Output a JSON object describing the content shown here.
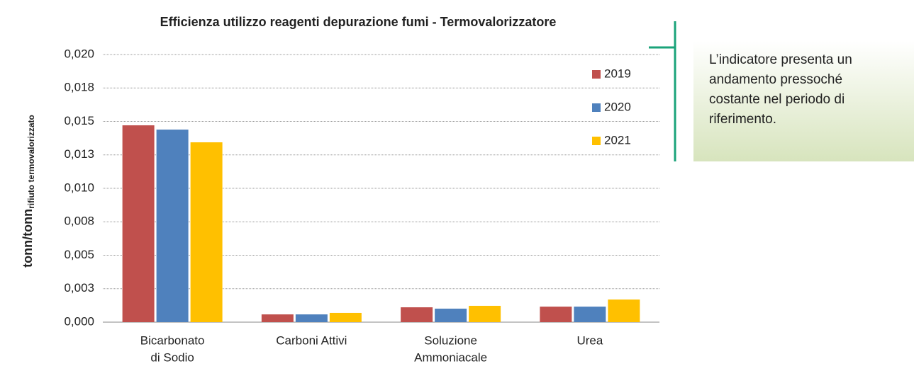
{
  "chart_data": {
    "type": "bar",
    "title": "Efficienza utilizzo reagenti depurazione fumi - Termovalorizzatore",
    "y_label": "tonn/tonn",
    "y_label_sub": "rifiuto termovalorizzato",
    "categories": [
      [
        "Bicarbonato",
        "di Sodio"
      ],
      [
        "Carboni Attivi"
      ],
      [
        "Soluzione",
        "Ammoniacale"
      ],
      [
        "Urea"
      ]
    ],
    "series": [
      {
        "name": "2019",
        "color": "#c0504d",
        "values": [
          0.01471,
          0.00058,
          0.00111,
          0.00116
        ]
      },
      {
        "name": "2020",
        "color": "#4f81bd",
        "values": [
          0.01439,
          0.00058,
          0.00101,
          0.00116
        ]
      },
      {
        "name": "2021",
        "color": "#ffc000",
        "values": [
          0.01344,
          0.00069,
          0.00122,
          0.00169
        ]
      }
    ],
    "ylim": [
      0,
      0.02
    ],
    "yticks": [
      {
        "value": 0,
        "label": "0,000"
      },
      {
        "value": 0.0025,
        "label": "0,003"
      },
      {
        "value": 0.005,
        "label": "0,005"
      },
      {
        "value": 0.0075,
        "label": "0,008"
      },
      {
        "value": 0.01,
        "label": "0,010"
      },
      {
        "value": 0.0125,
        "label": "0,013"
      },
      {
        "value": 0.015,
        "label": "0,015"
      },
      {
        "value": 0.0175,
        "label": "0,018"
      },
      {
        "value": 0.02,
        "label": "0,020"
      }
    ],
    "grid": true,
    "legend": "upper right"
  },
  "note": {
    "lines": [
      "L’indicatore presenta un",
      "andamento pressoché",
      "costante nel periodo di",
      "riferimento."
    ]
  }
}
